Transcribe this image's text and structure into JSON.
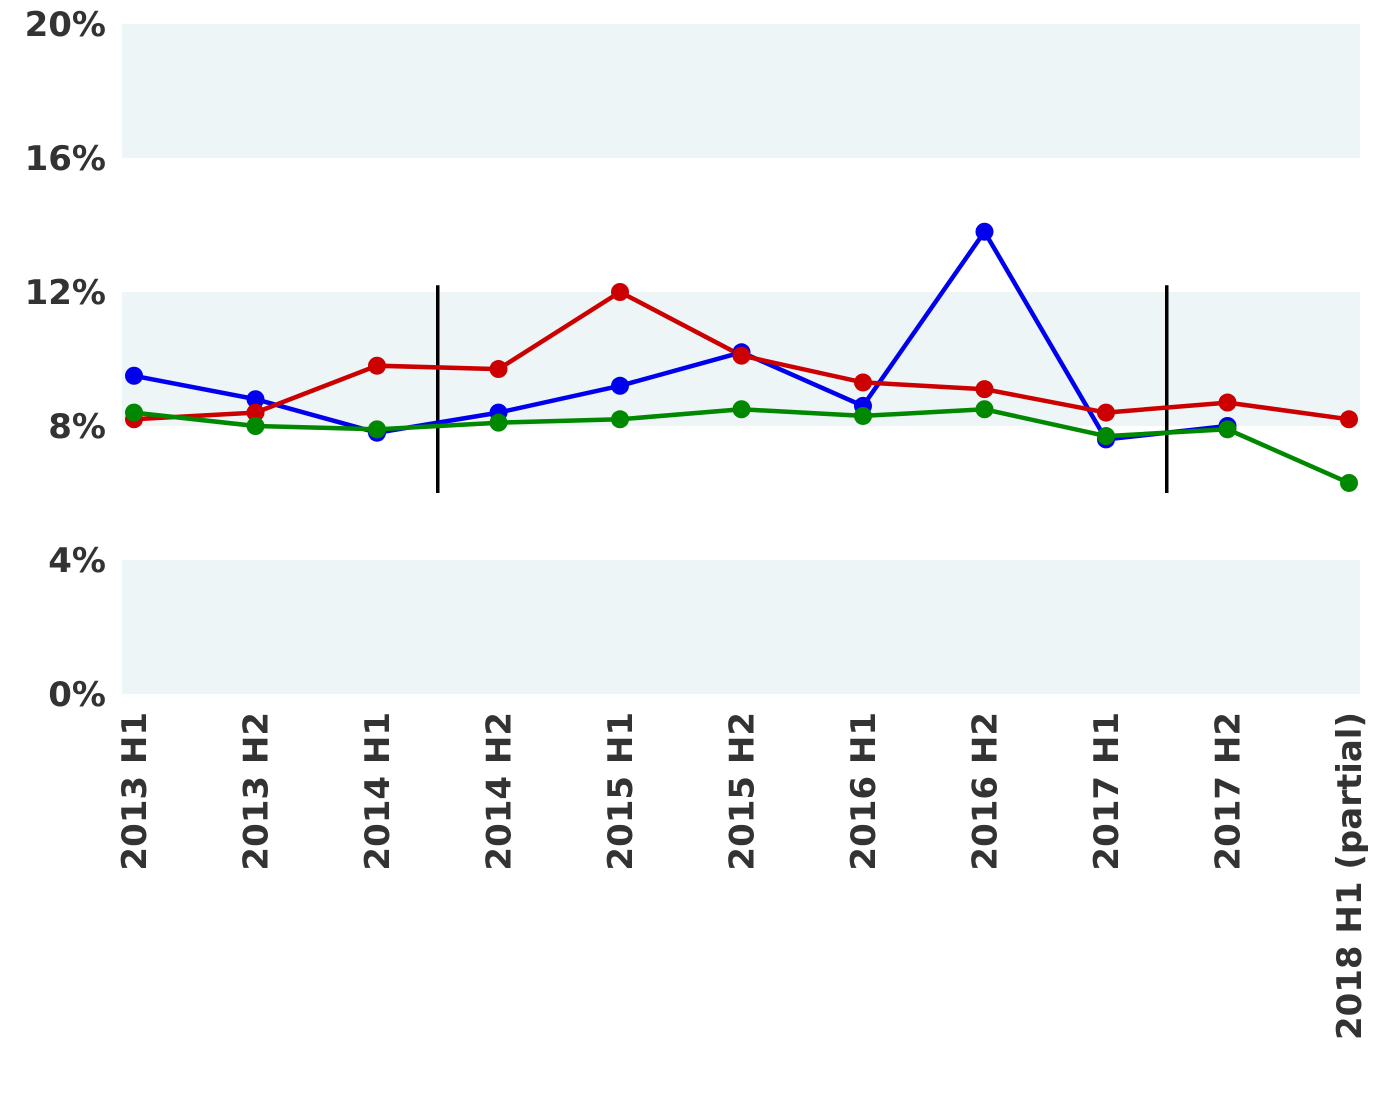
{
  "chart_data": {
    "type": "line",
    "categories": [
      "2013 H1",
      "2013 H2",
      "2014 H1",
      "2014 H2",
      "2015 H1",
      "2015 H2",
      "2016 H1",
      "2016 H2",
      "2017 H1",
      "2017 H2",
      "2018 H1 (partial)"
    ],
    "series": [
      {
        "color": "#0000ee",
        "values": [
          9.5,
          8.8,
          7.8,
          8.4,
          9.2,
          10.2,
          8.6,
          13.8,
          7.6,
          8.0,
          null
        ]
      },
      {
        "color": "#cc0000",
        "values": [
          8.2,
          8.4,
          9.8,
          9.7,
          12.0,
          10.1,
          9.3,
          9.1,
          8.4,
          8.7,
          8.2
        ]
      },
      {
        "color": "#008800",
        "values": [
          8.4,
          8.0,
          7.9,
          8.1,
          8.2,
          8.5,
          8.3,
          8.5,
          7.7,
          7.9,
          6.3
        ]
      }
    ],
    "ylim": [
      0,
      20
    ],
    "yticks": [
      "0%",
      "4%",
      "8%",
      "12%",
      "16%",
      "20%"
    ],
    "ytick_values": [
      0,
      4,
      8,
      12,
      16,
      20
    ],
    "band_color": "#edf5f7",
    "divider_after_categories": [
      "2014 H1",
      "2017 H1"
    ],
    "divider_y_range": [
      6,
      12.2
    ],
    "grid": false,
    "legend": "none",
    "title": "",
    "xlabel": "",
    "ylabel": ""
  }
}
